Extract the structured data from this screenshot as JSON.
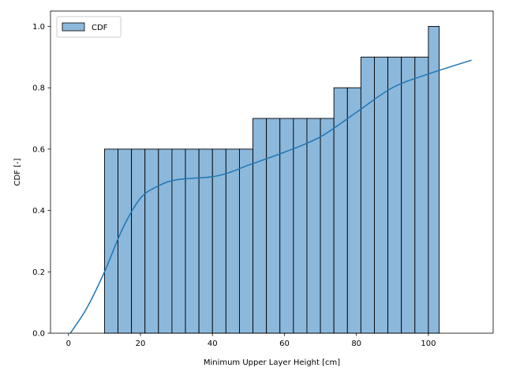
{
  "chart_data": {
    "type": "bar",
    "title": "",
    "xlabel": "Minimum Upper Layer Height [cm]",
    "ylabel": "CDF [-]",
    "xlim": [
      -5,
      118
    ],
    "ylim": [
      0,
      1.05
    ],
    "xticks": [
      0,
      20,
      40,
      60,
      80,
      100
    ],
    "yticks": [
      0.0,
      0.2,
      0.4,
      0.6,
      0.8,
      1.0
    ],
    "xtick_labels": [
      "0",
      "20",
      "40",
      "60",
      "80",
      "100"
    ],
    "ytick_labels": [
      "0.0",
      "0.2",
      "0.4",
      "0.6",
      "0.8",
      "1.0"
    ],
    "legend": {
      "position": "top-left",
      "entries": [
        "CDF"
      ]
    },
    "grid": false,
    "histogram": {
      "name": "CDF",
      "bin_edges": [
        10.0,
        13.75,
        17.5,
        21.25,
        25.0,
        28.75,
        32.5,
        36.25,
        40.0,
        43.75,
        47.5,
        51.25,
        55.0,
        58.75,
        62.5,
        66.25,
        70.0,
        73.75,
        77.5,
        81.25,
        85.0,
        88.75,
        92.5,
        96.25,
        100.0,
        103.0
      ],
      "values": [
        0.6,
        0.6,
        0.6,
        0.6,
        0.6,
        0.6,
        0.6,
        0.6,
        0.6,
        0.6,
        0.6,
        0.7,
        0.7,
        0.7,
        0.7,
        0.7,
        0.7,
        0.8,
        0.8,
        0.9,
        0.9,
        0.9,
        0.9,
        0.9,
        1.0
      ]
    },
    "kde_line": {
      "x": [
        0.5,
        5,
        10,
        15,
        20,
        25,
        30,
        40,
        45,
        50,
        60,
        70,
        80,
        90,
        100,
        112
      ],
      "y": [
        0.0,
        0.08,
        0.2,
        0.34,
        0.44,
        0.48,
        0.5,
        0.51,
        0.525,
        0.548,
        0.59,
        0.64,
        0.72,
        0.8,
        0.845,
        0.89
      ]
    },
    "colors": {
      "bar_fill": "#8cb8dc",
      "bar_edge": "#000000",
      "line": "#1f77b4"
    }
  }
}
